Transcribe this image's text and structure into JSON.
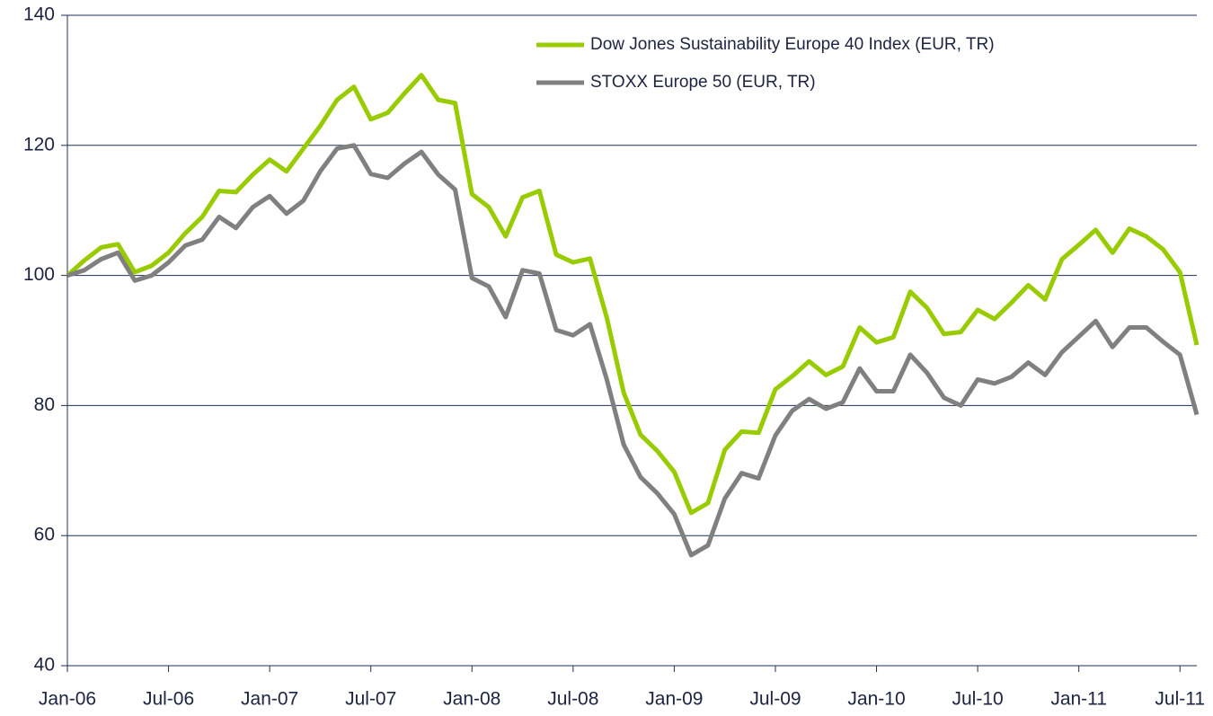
{
  "chart_data": {
    "type": "line",
    "categories": [
      "Jan-06",
      null,
      null,
      null,
      null,
      null,
      "Jul-06",
      null,
      null,
      null,
      null,
      null,
      "Jan-07",
      null,
      null,
      null,
      null,
      null,
      "Jul-07",
      null,
      null,
      null,
      null,
      null,
      "Jan-08",
      null,
      null,
      null,
      null,
      null,
      "Jul-08",
      null,
      null,
      null,
      null,
      null,
      "Jan-09",
      null,
      null,
      null,
      null,
      null,
      "Jul-09",
      null,
      null,
      null,
      null,
      null,
      "Jan-10",
      null,
      null,
      null,
      null,
      null,
      "Jul-10",
      null,
      null,
      null,
      null,
      null,
      "Jan-11",
      null,
      null,
      null,
      null,
      null,
      "Jul-11",
      null
    ],
    "series": [
      {
        "name": "Dow Jones Sustainability Europe 40 Index (EUR, TR)",
        "color": "#99cc00",
        "values": [
          100,
          102.3,
          104.3,
          104.8,
          100.5,
          101.5,
          103.5,
          106.5,
          109,
          113,
          112.8,
          115.5,
          117.8,
          116,
          119.5,
          123,
          127,
          129,
          124,
          125,
          128,
          130.8,
          127,
          126.5,
          112.5,
          110.5,
          106,
          112,
          113,
          103.2,
          102,
          102.6,
          93.5,
          82,
          75.5,
          73,
          69.8,
          63.5,
          65,
          73.2,
          76,
          75.8,
          82.5,
          84.5,
          86.8,
          84.7,
          86,
          92,
          89.7,
          90.5,
          97.5,
          95,
          91,
          91.3,
          94.7,
          93.3,
          95.8,
          98.5,
          96.3,
          102.5,
          104.7,
          107,
          103.5,
          107.2,
          106,
          104,
          100.5,
          89.3
        ]
      },
      {
        "name": "STOXX Europe 50 (EUR, TR)",
        "color": "#808080",
        "values": [
          100,
          100.8,
          102.5,
          103.5,
          99.2,
          100,
          102,
          104.6,
          105.5,
          109,
          107.3,
          110.5,
          112.2,
          109.5,
          111.5,
          116,
          119.5,
          120,
          115.6,
          115,
          117.2,
          119,
          115.5,
          113.2,
          99.6,
          98.3,
          93.6,
          100.8,
          100.3,
          91.6,
          90.8,
          92.5,
          84,
          74,
          69,
          66.5,
          63.3,
          57,
          58.5,
          65.7,
          69.6,
          68.8,
          75.4,
          79.2,
          81,
          79.5,
          80.5,
          85.7,
          82.2,
          82.2,
          87.8,
          85,
          81.2,
          80,
          84,
          83.4,
          84.4,
          86.6,
          84.7,
          88.2,
          90.6,
          93,
          89,
          92,
          92,
          89.8,
          87.8,
          78.6
        ]
      }
    ],
    "ylim": [
      40,
      140
    ],
    "yticks": [
      40,
      60,
      80,
      100,
      120,
      140
    ],
    "grid": true,
    "legend": "upper right"
  }
}
